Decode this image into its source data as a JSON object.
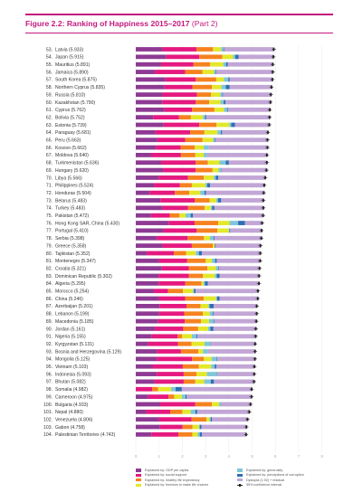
{
  "figure": {
    "title": "Figure 2.2: Ranking of Happiness 2015–2017",
    "part": "(Part 2)"
  },
  "chart_data": {
    "type": "stacked-bar-horizontal",
    "title": "Figure 2.2: Ranking of Happiness 2015–2017 (Part 2)",
    "xlim": [
      0,
      8
    ],
    "x_ticks": [
      "0",
      "1",
      "2",
      "3",
      "4",
      "5",
      "6",
      "7",
      "8"
    ],
    "components": [
      {
        "key": "gdp",
        "name": "Explained by: GDP per capita",
        "color": "#8e3a93"
      },
      {
        "key": "social",
        "name": "Explained by: social support",
        "color": "#e5197f"
      },
      {
        "key": "health",
        "name": "Explained by: healthy life expectancy",
        "color": "#f58220"
      },
      {
        "key": "freedom",
        "name": "Explained by: freedom to make life choices",
        "color": "#e3e82a"
      },
      {
        "key": "generosity",
        "name": "Explained by: generosity",
        "color": "#7fc6d9"
      },
      {
        "key": "corruption",
        "name": "Explained by: perceptions of corruption",
        "color": "#2f6fb3"
      },
      {
        "key": "dystopia",
        "name": "Dystopia (1.92) + residual",
        "color": "#c2a6d6"
      }
    ],
    "ci_label": "95% confidence interval",
    "rows": [
      {
        "rank": "53.",
        "label": "Latvia (5.933)",
        "score": 5.933,
        "gdp": 1.15,
        "social": 1.46,
        "health": 0.71,
        "freedom": 0.35,
        "generosity": 0.1,
        "corruption": 0.03,
        "dystopia": 2.133
      },
      {
        "rank": "54.",
        "label": "Japan (5.915)",
        "score": 5.915,
        "gdp": 1.29,
        "social": 1.44,
        "health": 0.99,
        "freedom": 0.46,
        "generosity": 0.1,
        "corruption": 0.14,
        "dystopia": 1.495
      },
      {
        "rank": "55.",
        "label": "Mauritius (5.891)",
        "score": 5.891,
        "gdp": 1.09,
        "social": 1.39,
        "health": 0.72,
        "freedom": 0.56,
        "generosity": 0.12,
        "corruption": 0.07,
        "dystopia": 1.951
      },
      {
        "rank": "56.",
        "label": "Jamaica (5.890)",
        "score": 5.89,
        "gdp": 0.82,
        "social": 1.31,
        "health": 0.74,
        "freedom": 0.49,
        "generosity": 0.07,
        "corruption": 0.03,
        "dystopia": 2.43
      },
      {
        "rank": "57.",
        "label": "South Korea (5.875)",
        "score": 5.875,
        "gdp": 1.27,
        "social": 1.31,
        "health": 0.88,
        "freedom": 0.33,
        "generosity": 0.19,
        "corruption": 0.06,
        "dystopia": 1.835
      },
      {
        "rank": "58.",
        "label": "Northern Cyprus (5.835)",
        "score": 5.835,
        "gdp": 1.23,
        "social": 1.21,
        "health": 0.83,
        "freedom": 0.41,
        "generosity": 0.19,
        "corruption": 0.16,
        "dystopia": 1.805
      },
      {
        "rank": "59.",
        "label": "Russia (5.810)",
        "score": 5.81,
        "gdp": 1.15,
        "social": 1.48,
        "health": 0.6,
        "freedom": 0.4,
        "generosity": 0.09,
        "corruption": 0.03,
        "dystopia": 2.06
      },
      {
        "rank": "60.",
        "label": "Kazakhstan (5.790)",
        "score": 5.79,
        "gdp": 1.14,
        "social": 1.44,
        "health": 0.58,
        "freedom": 0.48,
        "generosity": 0.14,
        "corruption": 0.08,
        "dystopia": 1.93
      },
      {
        "rank": "61.",
        "label": "Cyprus (5.762)",
        "score": 5.762,
        "gdp": 1.23,
        "social": 1.19,
        "health": 0.96,
        "freedom": 0.41,
        "generosity": 0.13,
        "corruption": 0.04,
        "dystopia": 1.802
      },
      {
        "rank": "62.",
        "label": "Bolivia (5.752)",
        "score": 5.752,
        "gdp": 0.75,
        "social": 1.11,
        "health": 0.51,
        "freedom": 0.52,
        "generosity": 0.09,
        "corruption": 0.05,
        "dystopia": 2.722
      },
      {
        "rank": "63.",
        "label": "Estonia (5.739)",
        "score": 5.739,
        "gdp": 1.2,
        "social": 1.53,
        "health": 0.74,
        "freedom": 0.55,
        "generosity": 0.08,
        "corruption": 0.17,
        "dystopia": 1.459
      },
      {
        "rank": "64.",
        "label": "Paraguay (5.681)",
        "score": 5.681,
        "gdp": 0.84,
        "social": 1.5,
        "health": 0.61,
        "freedom": 0.56,
        "generosity": 0.15,
        "corruption": 0.05,
        "dystopia": 1.971
      },
      {
        "rank": "65.",
        "label": "Peru (5.663)",
        "score": 5.663,
        "gdp": 0.93,
        "social": 1.19,
        "health": 0.75,
        "freedom": 0.45,
        "generosity": 0.07,
        "corruption": 0.03,
        "dystopia": 2.243
      },
      {
        "rank": "66.",
        "label": "Kosovo (5.662)",
        "score": 5.662,
        "gdp": 0.86,
        "social": 1.07,
        "health": 0.61,
        "freedom": 0.38,
        "generosity": 0.22,
        "corruption": 0.0,
        "dystopia": 2.522
      },
      {
        "rank": "67.",
        "label": "Moldova (5.640)",
        "score": 5.64,
        "gdp": 0.66,
        "social": 1.28,
        "health": 0.62,
        "freedom": 0.36,
        "generosity": 0.13,
        "corruption": 0.01,
        "dystopia": 2.58
      },
      {
        "rank": "68.",
        "label": "Turkmenistan (5.636)",
        "score": 5.636,
        "gdp": 1.09,
        "social": 1.48,
        "health": 0.53,
        "freedom": 0.5,
        "generosity": 0.27,
        "corruption": 0.13,
        "dystopia": 1.636
      },
      {
        "rank": "69.",
        "label": "Hungary (5.620)",
        "score": 5.62,
        "gdp": 1.17,
        "social": 1.4,
        "health": 0.73,
        "freedom": 0.26,
        "generosity": 0.11,
        "corruption": 0.02,
        "dystopia": 1.93
      },
      {
        "rank": "70.",
        "label": "Libya (5.566)",
        "score": 5.566,
        "gdp": 0.98,
        "social": 1.26,
        "health": 0.68,
        "freedom": 0.43,
        "generosity": 0.09,
        "corruption": 0.11,
        "dystopia": 2.006
      },
      {
        "rank": "71.",
        "label": "Philippines (5.524)",
        "score": 5.524,
        "gdp": 0.78,
        "social": 1.12,
        "health": 0.51,
        "freedom": 0.58,
        "generosity": 0.08,
        "corruption": 0.12,
        "dystopia": 2.354
      },
      {
        "rank": "72.",
        "label": "Honduras (5.504)",
        "score": 5.504,
        "gdp": 0.59,
        "social": 1.09,
        "health": 0.62,
        "freedom": 0.47,
        "generosity": 0.18,
        "corruption": 0.07,
        "dystopia": 2.484
      },
      {
        "rank": "73.",
        "label": "Belarus (5.483)",
        "score": 5.483,
        "gdp": 1.06,
        "social": 1.47,
        "health": 0.64,
        "freedom": 0.29,
        "generosity": 0.07,
        "corruption": 0.14,
        "dystopia": 1.813
      },
      {
        "rank": "74.",
        "label": "Turkey (5.483)",
        "score": 5.483,
        "gdp": 1.15,
        "social": 1.1,
        "health": 0.71,
        "freedom": 0.27,
        "generosity": 0.05,
        "corruption": 0.1,
        "dystopia": 2.103
      },
      {
        "rank": "75.",
        "label": "Pakistan (5.472)",
        "score": 5.472,
        "gdp": 0.65,
        "social": 0.81,
        "health": 0.42,
        "freedom": 0.26,
        "generosity": 0.22,
        "corruption": 0.1,
        "dystopia": 3.012
      },
      {
        "rank": "76.",
        "label": "Hong Kong SAR, China (5.430)",
        "score": 5.43,
        "gdp": 1.41,
        "social": 1.12,
        "health": 1.01,
        "freedom": 0.49,
        "generosity": 0.37,
        "corruption": 0.29,
        "dystopia": 0.741
      },
      {
        "rank": "77.",
        "label": "Portugal (5.410)",
        "score": 5.41,
        "gdp": 1.19,
        "social": 1.43,
        "health": 0.89,
        "freedom": 0.49,
        "generosity": 0.03,
        "corruption": 0.03,
        "dystopia": 1.34
      },
      {
        "rank": "78.",
        "label": "Serbia (5.398)",
        "score": 5.398,
        "gdp": 0.92,
        "social": 1.31,
        "health": 0.7,
        "freedom": 0.26,
        "generosity": 0.15,
        "corruption": 0.04,
        "dystopia": 2.018
      },
      {
        "rank": "79.",
        "label": "Greece (5.358)",
        "score": 5.358,
        "gdp": 1.15,
        "social": 1.26,
        "health": 0.9,
        "freedom": 0.08,
        "generosity": 0.0,
        "corruption": 0.03,
        "dystopia": 1.938
      },
      {
        "rank": "80.",
        "label": "Tajikistan (5.352)",
        "score": 5.352,
        "gdp": 0.47,
        "social": 1.17,
        "health": 0.52,
        "freedom": 0.42,
        "generosity": 0.13,
        "corruption": 0.13,
        "dystopia": 2.512
      },
      {
        "rank": "81.",
        "label": "Montenegro (5.347)",
        "score": 5.347,
        "gdp": 0.99,
        "social": 1.22,
        "health": 0.8,
        "freedom": 0.26,
        "generosity": 0.14,
        "corruption": 0.07,
        "dystopia": 1.867
      },
      {
        "rank": "82.",
        "label": "Croatia (5.321)",
        "score": 5.321,
        "gdp": 1.12,
        "social": 1.16,
        "health": 0.8,
        "freedom": 0.36,
        "generosity": 0.1,
        "corruption": 0.02,
        "dystopia": 1.761
      },
      {
        "rank": "83.",
        "label": "Dominican Republic (5.302)",
        "score": 5.302,
        "gdp": 0.98,
        "social": 1.3,
        "health": 0.61,
        "freedom": 0.51,
        "generosity": 0.08,
        "corruption": 0.12,
        "dystopia": 1.702
      },
      {
        "rank": "84.",
        "label": "Algeria (5.295)",
        "score": 5.295,
        "gdp": 0.98,
        "social": 1.15,
        "health": 0.69,
        "freedom": 0.09,
        "generosity": 0.06,
        "corruption": 0.13,
        "dystopia": 2.195
      },
      {
        "rank": "85.",
        "label": "Morocco (5.254)",
        "score": 5.254,
        "gdp": 0.78,
        "social": 0.61,
        "health": 0.64,
        "freedom": 0.43,
        "generosity": 0.04,
        "corruption": 0.07,
        "dystopia": 2.674
      },
      {
        "rank": "86.",
        "label": "China (5.246)",
        "score": 5.246,
        "gdp": 0.99,
        "social": 1.13,
        "health": 0.8,
        "freedom": 0.53,
        "generosity": 0.04,
        "corruption": 0.11,
        "dystopia": 1.646
      },
      {
        "rank": "87.",
        "label": "Azerbaijan (5.201)",
        "score": 5.201,
        "gdp": 1.02,
        "social": 1.16,
        "health": 0.6,
        "freedom": 0.35,
        "generosity": 0.04,
        "corruption": 0.18,
        "dystopia": 1.851
      },
      {
        "rank": "88.",
        "label": "Lebanon (5.199)",
        "score": 5.199,
        "gdp": 1.0,
        "social": 1.08,
        "health": 0.8,
        "freedom": 0.3,
        "generosity": 0.12,
        "corruption": 0.04,
        "dystopia": 1.859
      },
      {
        "rank": "89.",
        "label": "Macedonia (5.185)",
        "score": 5.185,
        "gdp": 0.96,
        "social": 1.15,
        "health": 0.69,
        "freedom": 0.35,
        "generosity": 0.19,
        "corruption": 0.03,
        "dystopia": 1.815
      },
      {
        "rank": "90.",
        "label": "Jordan (5.161)",
        "score": 5.161,
        "gdp": 0.82,
        "social": 1.22,
        "health": 0.64,
        "freedom": 0.43,
        "generosity": 0.09,
        "corruption": 0.14,
        "dystopia": 1.821
      },
      {
        "rank": "91.",
        "label": "Nigeria (5.155)",
        "score": 5.155,
        "gdp": 0.69,
        "social": 1.11,
        "health": 0.19,
        "freedom": 0.42,
        "generosity": 0.2,
        "corruption": 0.04,
        "dystopia": 2.505
      },
      {
        "rank": "92.",
        "label": "Kyrgyzstan (5.131)",
        "score": 5.131,
        "gdp": 0.53,
        "social": 1.28,
        "health": 0.59,
        "freedom": 0.55,
        "generosity": 0.25,
        "corruption": 0.02,
        "dystopia": 1.911
      },
      {
        "rank": "93.",
        "label": "Bosnia and Herzegovina (5.129)",
        "score": 5.129,
        "gdp": 0.92,
        "social": 1.02,
        "health": 0.75,
        "freedom": 0.2,
        "generosity": 0.22,
        "corruption": 0.0,
        "dystopia": 2.019
      },
      {
        "rank": "94.",
        "label": "Mongolia (5.125)",
        "score": 5.125,
        "gdp": 0.91,
        "social": 1.51,
        "health": 0.51,
        "freedom": 0.33,
        "generosity": 0.22,
        "corruption": 0.03,
        "dystopia": 1.615
      },
      {
        "rank": "95.",
        "label": "Vietnam (5.103)",
        "score": 5.103,
        "gdp": 0.72,
        "social": 1.3,
        "health": 0.69,
        "freedom": 0.53,
        "generosity": 0.15,
        "corruption": 0.07,
        "dystopia": 1.643
      },
      {
        "rank": "96.",
        "label": "Indonesia (5.093)",
        "score": 5.093,
        "gdp": 0.9,
        "social": 1.16,
        "health": 0.55,
        "freedom": 0.45,
        "generosity": 0.43,
        "corruption": 0.02,
        "dystopia": 1.583
      },
      {
        "rank": "97.",
        "label": "Bhutan (5.082)",
        "score": 5.082,
        "gdp": 0.8,
        "social": 1.26,
        "health": 0.5,
        "freedom": 0.38,
        "generosity": 0.28,
        "corruption": 0.14,
        "dystopia": 1.722
      },
      {
        "rank": "98.",
        "label": "Somalia (4.982)",
        "score": 4.982,
        "gdp": 0.0,
        "social": 0.7,
        "health": 0.26,
        "freedom": 0.56,
        "generosity": 0.19,
        "corruption": 0.27,
        "dystopia": 3.002
      },
      {
        "rank": "99.",
        "label": "Cameroon (4.975)",
        "score": 4.975,
        "gdp": 0.53,
        "social": 0.88,
        "health": 0.24,
        "freedom": 0.33,
        "generosity": 0.16,
        "corruption": 0.05,
        "dystopia": 2.775
      },
      {
        "rank": "100.",
        "label": "Bulgaria (4.933)",
        "score": 4.933,
        "gdp": 1.05,
        "social": 1.51,
        "health": 0.71,
        "freedom": 0.31,
        "generosity": 0.08,
        "corruption": 0.01,
        "dystopia": 1.263
      },
      {
        "rank": "101.",
        "label": "Nepal (4.880)",
        "score": 4.88,
        "gdp": 0.45,
        "social": 1.03,
        "health": 0.52,
        "freedom": 0.36,
        "generosity": 0.2,
        "corruption": 0.08,
        "dystopia": 2.24
      },
      {
        "rank": "102.",
        "label": "Venezuela (4.806)",
        "score": 4.806,
        "gdp": 0.99,
        "social": 1.41,
        "health": 0.64,
        "freedom": 0.13,
        "generosity": 0.05,
        "corruption": 0.06,
        "dystopia": 1.526
      },
      {
        "rank": "103.",
        "label": "Gabon (4.758)",
        "score": 4.758,
        "gdp": 1.04,
        "social": 0.97,
        "health": 0.43,
        "freedom": 0.28,
        "generosity": 0.03,
        "corruption": 0.07,
        "dystopia": 1.928
      },
      {
        "rank": "104.",
        "label": "Palestinian Territories (4.743)",
        "score": 4.743,
        "gdp": 0.67,
        "social": 1.16,
        "health": 0.6,
        "freedom": 0.23,
        "generosity": 0.09,
        "corruption": 0.09,
        "dystopia": 1.903
      }
    ]
  }
}
